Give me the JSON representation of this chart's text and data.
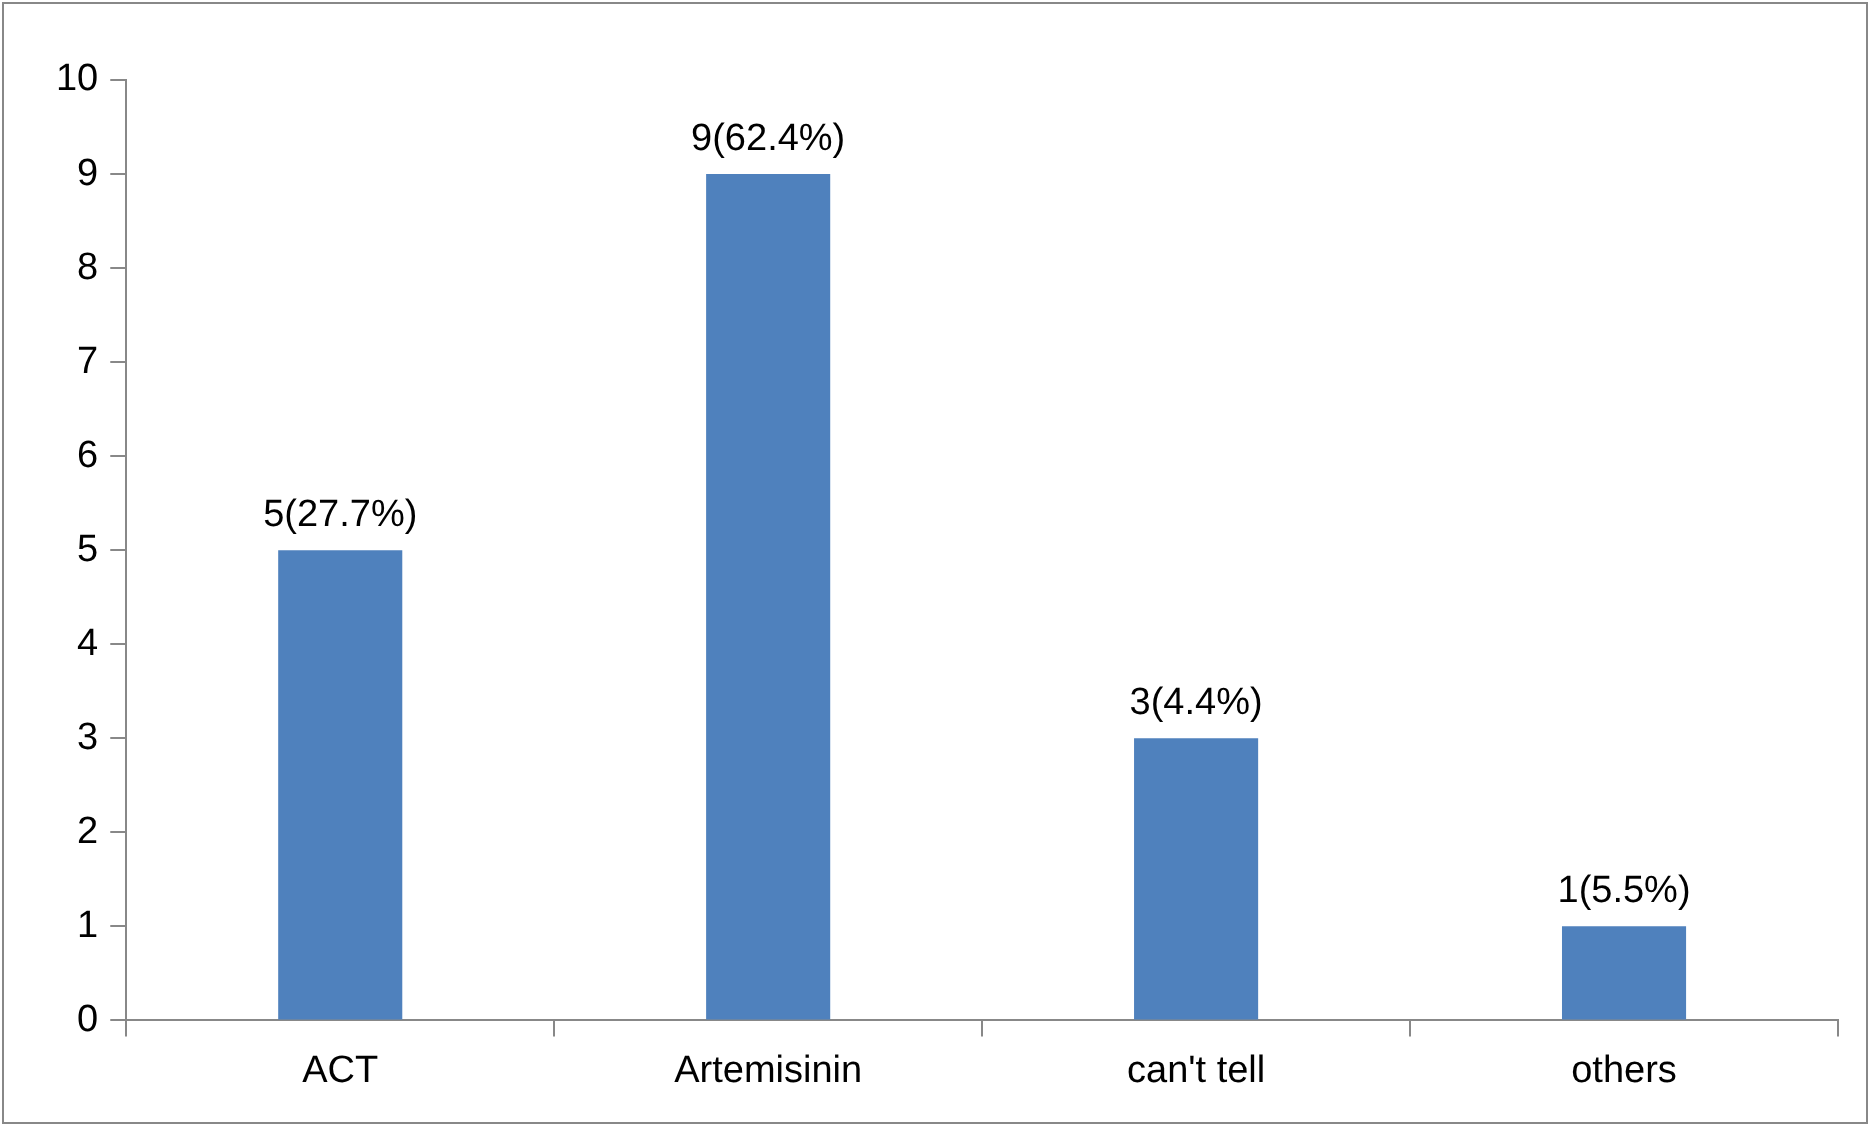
{
  "chart_data": {
    "type": "bar",
    "categories": [
      "ACT",
      "Artemisinin",
      "can't tell",
      "others"
    ],
    "values": [
      5,
      9,
      3,
      1
    ],
    "color": "#4f81bd",
    "value_labels": [
      "5(27.7%)",
      "9(62.4%)",
      "3(4.4%)",
      "1(5.5%)"
    ],
    "ylim": [
      0,
      10
    ],
    "yticks": [
      0,
      1,
      2,
      3,
      4,
      5,
      6,
      7,
      8,
      9,
      10
    ],
    "grid": false,
    "legend": false
  }
}
